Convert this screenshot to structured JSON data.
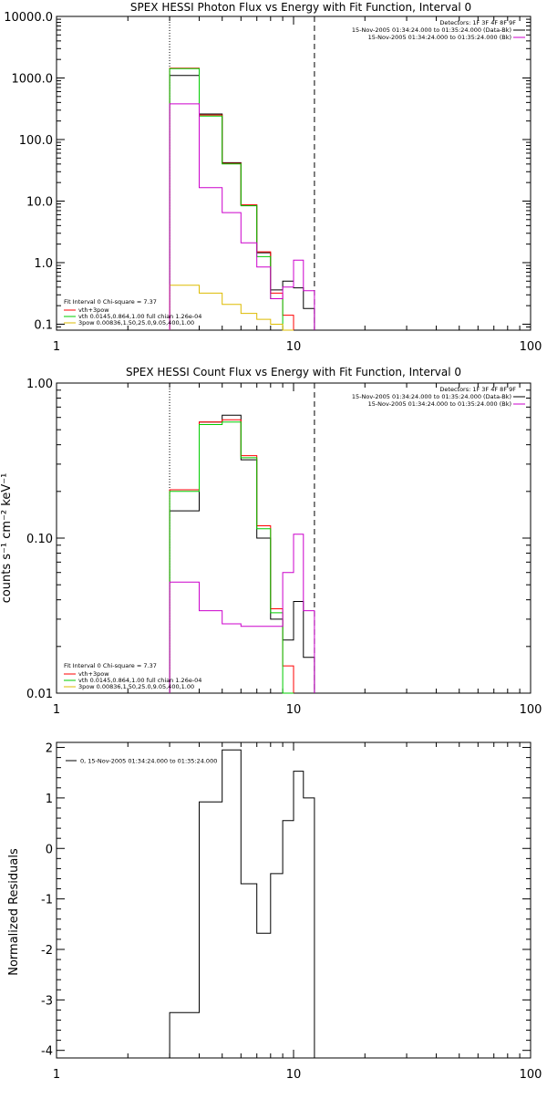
{
  "chart_data": [
    {
      "type": "line",
      "title": "SPEX HESSI Photon Flux vs Energy with Fit Function, Interval 0",
      "xlabel": "",
      "ylabel": "",
      "xscale": "log",
      "yscale": "log",
      "xlim": [
        1,
        100
      ],
      "ylim": [
        0.08,
        10000
      ],
      "xticks": [
        1,
        10,
        100
      ],
      "xtick_labels": [
        "1",
        "10",
        "100"
      ],
      "yticks": [
        0.1,
        1,
        10,
        100,
        1000,
        10000
      ],
      "ytick_labels": [
        "0.1",
        "1.0",
        "10.0",
        "100.0",
        "1000.0",
        "10000.0"
      ],
      "vlines": [
        {
          "x": 3.0,
          "style": "dotted"
        },
        {
          "x": 12.25,
          "style": "dashed"
        }
      ],
      "legend_tr": {
        "position": "top-right",
        "header": "Detectors: 1F 3F 4F 8F 9F",
        "entries": [
          {
            "label": "15-Nov-2005 01:34:24.000 to 01:35:24.000 (Data-Bk)",
            "color": "#000000"
          },
          {
            "label": "15-Nov-2005 01:34:24.000 to 01:35:24.000 (Bk)",
            "color": "#cc00cc"
          }
        ]
      },
      "legend_bl": {
        "position": "bottom-left",
        "header": "Fit Interval 0   Chi-square = 7.37",
        "entries": [
          {
            "label": "vth+3pow",
            "color": "#ff0000"
          },
          {
            "label": "vth 0.0145,0.864,1.00  full chian 1.26e-04",
            "color": "#00cc00"
          },
          {
            "label": "3pow 0.00836,1.50,25.0,9.05,400,1.00",
            "color": "#ddbb00"
          }
        ]
      },
      "edges": [
        3.0,
        4.0,
        5.0,
        6.0,
        7.0,
        8.0,
        9.0,
        10.0,
        11.0,
        12.25
      ],
      "series": [
        {
          "role": "data-bk",
          "color": "#000000",
          "values": [
            1100,
            260,
            42,
            8.6,
            1.45,
            0.36,
            0.5,
            0.39,
            0.18
          ]
        },
        {
          "role": "vth+3pow",
          "color": "#ff0000",
          "values": [
            1440,
            250,
            41,
            8.7,
            1.5,
            0.32,
            0.14
          ]
        },
        {
          "role": "vth",
          "color": "#00cc00",
          "values": [
            1420,
            240,
            40,
            8.4,
            1.25,
            0.26,
            0.07
          ]
        },
        {
          "role": "3pow",
          "color": "#ddbb00",
          "values": [
            0.43,
            0.32,
            0.21,
            0.15,
            0.12,
            0.1,
            0.08
          ]
        },
        {
          "role": "bk",
          "color": "#cc00cc",
          "values": [
            380,
            16.5,
            6.5,
            2.1,
            0.85,
            0.26,
            0.4,
            1.1,
            0.35
          ]
        }
      ]
    },
    {
      "type": "line",
      "title": "SPEX HESSI Count Flux vs Energy with Fit Function, Interval 0",
      "xlabel": "",
      "ylabel": "counts s⁻¹ cm⁻² keV⁻¹",
      "xscale": "log",
      "yscale": "log",
      "xlim": [
        1,
        100
      ],
      "ylim": [
        0.01,
        1.0
      ],
      "xticks": [
        1,
        10,
        100
      ],
      "xtick_labels": [
        "1",
        "10",
        "100"
      ],
      "yticks": [
        0.01,
        0.1,
        1.0
      ],
      "ytick_labels": [
        "0.01",
        "0.10",
        "1.00"
      ],
      "vlines": [
        {
          "x": 3.0,
          "style": "dotted"
        },
        {
          "x": 12.25,
          "style": "dashed"
        }
      ],
      "legend_tr": {
        "position": "top-right",
        "header": "Detectors: 1F 3F 4F 8F 9F",
        "entries": [
          {
            "label": "15-Nov-2005 01:34:24.000 to 01:35:24.000 (Data-Bk)",
            "color": "#000000"
          },
          {
            "label": "15-Nov-2005 01:34:24.000 to 01:35:24.000 (Bk)",
            "color": "#cc00cc"
          }
        ]
      },
      "legend_bl": {
        "position": "bottom-left",
        "header": "Fit Interval 0   Chi-square = 7.37",
        "entries": [
          {
            "label": "vth+3pow",
            "color": "#ff0000"
          },
          {
            "label": "vth 0.0145,0.864,1.00  full chian 1.26e-04",
            "color": "#00cc00"
          },
          {
            "label": "3pow 0.00836,1.50,25.0,9.05,400,1.00",
            "color": "#ddbb00"
          }
        ]
      },
      "edges": [
        3.0,
        4.0,
        5.0,
        6.0,
        7.0,
        8.0,
        9.0,
        10.0,
        11.0,
        12.25
      ],
      "series": [
        {
          "role": "data-bk",
          "color": "#000000",
          "values": [
            0.15,
            0.56,
            0.62,
            0.32,
            0.1,
            0.03,
            0.022,
            0.039,
            0.017
          ]
        },
        {
          "role": "vth+3pow",
          "color": "#ff0000",
          "values": [
            0.205,
            0.56,
            0.58,
            0.34,
            0.12,
            0.035,
            0.015
          ]
        },
        {
          "role": "vth",
          "color": "#00cc00",
          "values": [
            0.2,
            0.54,
            0.56,
            0.33,
            0.115,
            0.033,
            0.009
          ]
        },
        {
          "role": "bk",
          "color": "#cc00cc",
          "values": [
            0.052,
            0.034,
            0.028,
            0.027,
            0.027,
            0.027,
            0.06,
            0.106,
            0.034
          ]
        }
      ]
    },
    {
      "type": "line",
      "title": "",
      "xlabel": "",
      "ylabel": "Normalized Residuals",
      "xscale": "log",
      "yscale": "linear",
      "xlim": [
        1,
        100
      ],
      "ylim": [
        -4.15,
        2.1
      ],
      "xticks": [
        1,
        10,
        100
      ],
      "xtick_labels": [
        "1",
        "10",
        "100"
      ],
      "yticks": [
        -4,
        -3,
        -2,
        -1,
        0,
        1,
        2
      ],
      "ytick_labels": [
        "-4",
        "-3",
        "-2",
        "-1",
        "0",
        "1",
        "2"
      ],
      "legend": {
        "position": "top-left",
        "entries": [
          {
            "label": "0, 15-Nov-2005 01:34:24.000 to 01:35:24.000",
            "color": "#000000"
          }
        ]
      },
      "edges": [
        3.0,
        4.0,
        5.0,
        6.0,
        7.0,
        8.0,
        9.0,
        10.0,
        11.0,
        12.25
      ],
      "series": [
        {
          "role": "residuals",
          "color": "#000000",
          "values": [
            -3.25,
            0.92,
            1.95,
            -0.7,
            -1.68,
            -0.5,
            0.55,
            1.53,
            1.0
          ]
        }
      ]
    }
  ]
}
